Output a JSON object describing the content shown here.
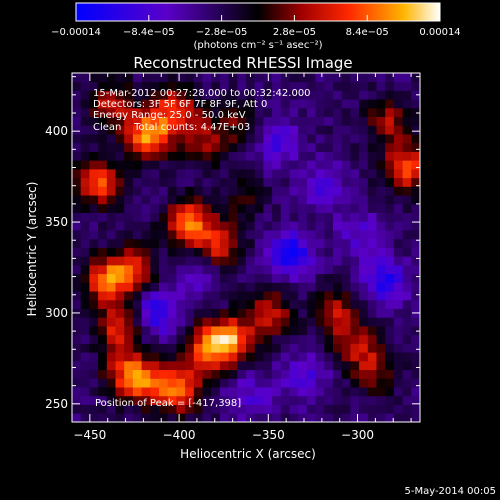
{
  "chart_data": {
    "type": "heatmap",
    "title": "Reconstructed RHESSI Image",
    "xlabel": "Heliocentric X (arcsec)",
    "ylabel": "Heliocentric Y (arcsec)",
    "xlim": [
      -460,
      -265
    ],
    "ylim": [
      240,
      432
    ],
    "x_ticks": [
      -450,
      -400,
      -350,
      -300
    ],
    "y_ticks": [
      250,
      300,
      350,
      400
    ],
    "x_tick_labels": [
      "−450",
      "−400",
      "−350",
      "−300"
    ],
    "y_tick_labels": [
      "250",
      "300",
      "350",
      "400"
    ],
    "colorbar": {
      "range": [
        -0.00014,
        0.00014
      ],
      "ticks": [
        -0.00014,
        -8.4e-05,
        -2.8e-05,
        2.8e-05,
        8.4e-05,
        0.00014
      ],
      "tick_labels": [
        "−0.00014",
        "−8.4e−05",
        "−2.8e−05",
        "2.8e−05",
        "8.4e−05",
        "0.00014"
      ],
      "units_label": "(photons cm⁻² s⁻¹ asec⁻²)"
    },
    "annotations": [
      "15-Mar-2012 00:27:28.000 to 00:32:42.000",
      "Detectors: 3F 5F 6F 7F 8F 9F, Att 0",
      "Energy Range: 25.0 - 50.0 keV",
      "Clean    Total counts: 4.47E+03"
    ],
    "peak_label": "Position of Peak = [-417,398]",
    "peak_position": [
      -417,
      398
    ],
    "blobs": [
      {
        "x": -417,
        "y": 398,
        "v": 0.00014
      },
      {
        "x": -402,
        "y": 412,
        "v": 0.0001
      },
      {
        "x": -438,
        "y": 415,
        "v": 8e-05
      },
      {
        "x": -445,
        "y": 372,
        "v": 0.00011
      },
      {
        "x": -395,
        "y": 350,
        "v": 0.00012
      },
      {
        "x": -378,
        "y": 338,
        "v": 9e-05
      },
      {
        "x": -440,
        "y": 318,
        "v": 0.00012
      },
      {
        "x": -425,
        "y": 325,
        "v": 8e-05
      },
      {
        "x": -433,
        "y": 293,
        "v": 0.0001
      },
      {
        "x": -350,
        "y": 300,
        "v": 9e-05
      },
      {
        "x": -372,
        "y": 285,
        "v": 0.00013
      },
      {
        "x": -385,
        "y": 280,
        "v": 0.0001
      },
      {
        "x": -400,
        "y": 258,
        "v": 0.00012
      },
      {
        "x": -420,
        "y": 262,
        "v": 9e-05
      },
      {
        "x": -430,
        "y": 268,
        "v": 8e-05
      },
      {
        "x": -385,
        "y": 395,
        "v": 7e-05
      },
      {
        "x": -312,
        "y": 300,
        "v": 8e-05
      },
      {
        "x": -300,
        "y": 282,
        "v": 7e-05
      },
      {
        "x": -290,
        "y": 268,
        "v": 6e-05
      },
      {
        "x": -273,
        "y": 380,
        "v": 0.00011
      },
      {
        "x": -282,
        "y": 405,
        "v": 7e-05
      },
      {
        "x": -365,
        "y": 405,
        "v": 5e-05
      },
      {
        "x": -365,
        "y": 362,
        "v": 4e-05
      },
      {
        "x": -338,
        "y": 333,
        "v": -9e-05
      },
      {
        "x": -413,
        "y": 300,
        "v": -8e-05
      },
      {
        "x": -285,
        "y": 318,
        "v": -8e-05
      },
      {
        "x": -320,
        "y": 370,
        "v": -5e-05
      },
      {
        "x": -345,
        "y": 395,
        "v": -6e-05
      },
      {
        "x": -330,
        "y": 265,
        "v": -5e-05
      },
      {
        "x": -360,
        "y": 255,
        "v": -4e-05
      },
      {
        "x": -390,
        "y": 320,
        "v": -4e-05
      },
      {
        "x": -300,
        "y": 345,
        "v": -4e-05
      }
    ]
  },
  "footer": {
    "date": "5-May-2014 00:05"
  }
}
